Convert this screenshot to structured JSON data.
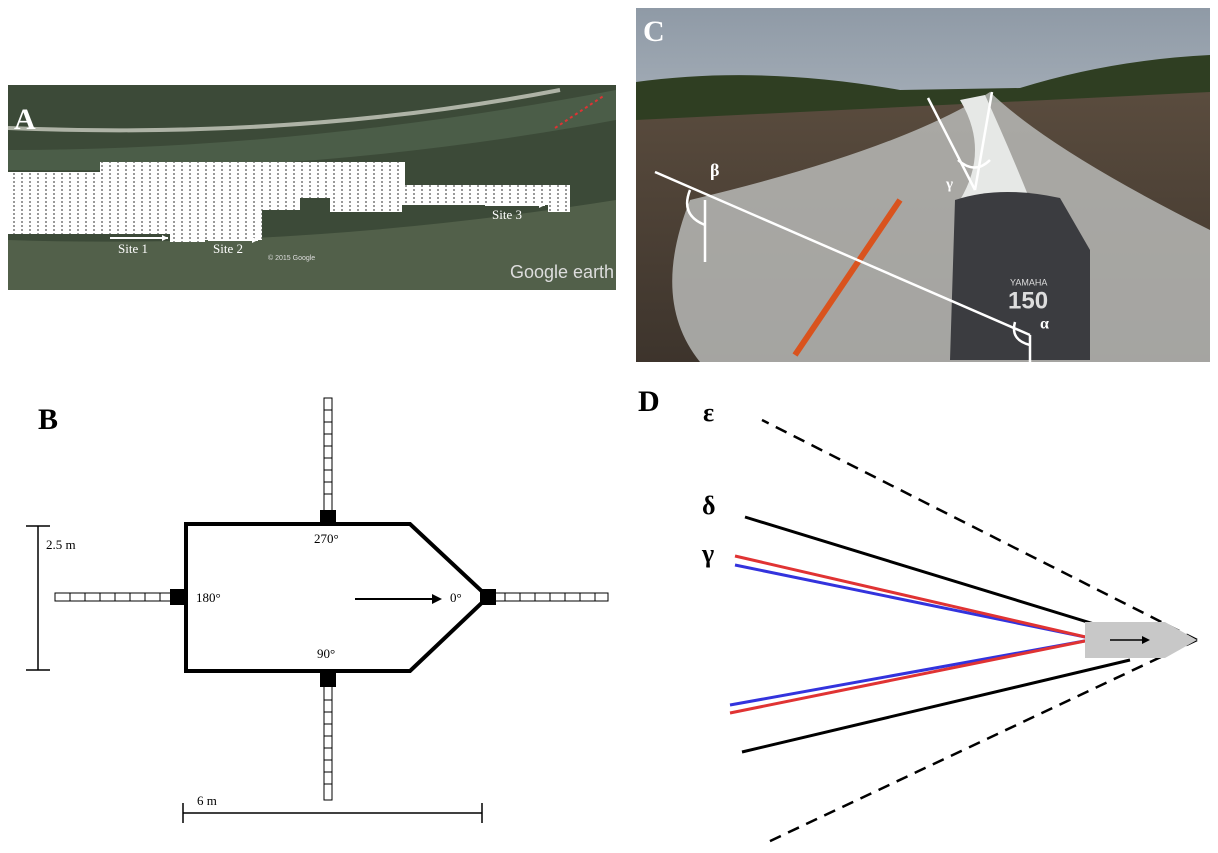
{
  "panels": {
    "a": {
      "label": "A",
      "sites": [
        "Site 1",
        "Site 2",
        "Site 3"
      ],
      "copyright": "© 2015 Google",
      "watermark": "Google earth"
    },
    "b": {
      "label": "B",
      "scale_vertical": "2.5 m",
      "scale_horizontal": "6 m",
      "angles": [
        "270°",
        "180°",
        "0°",
        "90°"
      ]
    },
    "c": {
      "label": "C",
      "angle_labels": [
        "β",
        "γ",
        "α"
      ],
      "engine_brand": "YAMAHA",
      "engine_model": "150"
    },
    "d": {
      "label": "D",
      "line_labels": [
        "ε",
        "δ",
        "γ"
      ]
    }
  }
}
